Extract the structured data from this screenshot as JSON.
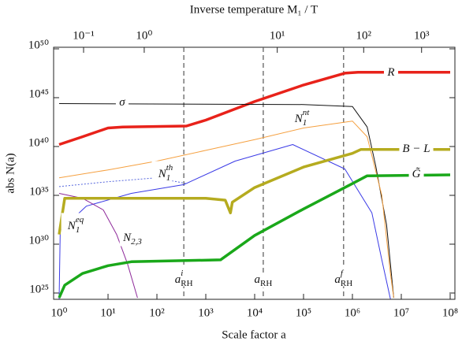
{
  "chart_data": {
    "type": "line",
    "xlabel": "Scale factor a",
    "ylabel": "abs N(a)",
    "x2label": "Inverse temperature M₁ / T",
    "xscale": "log",
    "yscale": "log",
    "xlim": [
      0.77,
      125000000.0
    ],
    "ylim": [
      2.26e+24,
      1.45e+50
    ],
    "xticks": [
      {
        "value": 1,
        "label": "10⁰"
      },
      {
        "value": 10,
        "label": "10¹"
      },
      {
        "value": 100,
        "label": "10²"
      },
      {
        "value": 1000,
        "label": "10³"
      },
      {
        "value": 10000,
        "label": "10⁴"
      },
      {
        "value": 100000,
        "label": "10⁵"
      },
      {
        "value": 1000000,
        "label": "10⁶"
      },
      {
        "value": 10000000,
        "label": "10⁷"
      },
      {
        "value": 100000000,
        "label": "10⁸"
      }
    ],
    "yticks": [
      {
        "value": 1e+25,
        "label": "10²⁵"
      },
      {
        "value": 1e+30,
        "label": "10³⁰"
      },
      {
        "value": 1e+35,
        "label": "10³⁵"
      },
      {
        "value": 1e+40,
        "label": "10⁴⁰"
      },
      {
        "value": 1e+45,
        "label": "10⁴⁵"
      },
      {
        "value": 1e+50,
        "label": "10⁵⁰"
      }
    ],
    "x2ticks": [
      {
        "value": 0.1,
        "label": "10⁻¹"
      },
      {
        "value": 1,
        "label": "10⁰"
      },
      {
        "value": 10,
        "label": "10¹"
      },
      {
        "value": 100,
        "label": "10²"
      },
      {
        "value": 1000,
        "label": "10³"
      }
    ],
    "x2_scale_factor": [
      3.16,
      55,
      29000,
      1700000,
      26000000
    ],
    "vlines": [
      {
        "x": 355,
        "label": "a",
        "sub": "RH",
        "sup": "i"
      },
      {
        "x": 15000,
        "label": "a",
        "sub": "RH"
      },
      {
        "x": 660000,
        "label": "a",
        "sub": "RH",
        "sup": "f"
      }
    ],
    "series": [
      {
        "name": "R",
        "color": "#e8221a",
        "width": 3.5,
        "x": [
          1,
          3,
          10,
          20,
          400,
          1000,
          10000,
          100000,
          700000,
          1300000,
          100000000
        ],
        "values": [
          1.6e+40,
          1e+41,
          7.9e+41,
          1e+42,
          1.26e+42,
          5e+42,
          4e+44,
          2e+46,
          3.2e+47,
          4e+47,
          4e+47
        ]
      },
      {
        "name": "σ",
        "color": "#111111",
        "width": 1,
        "x": [
          1,
          100000,
          1000000,
          2000000,
          3000000,
          5000000,
          7000000
        ],
        "values": [
          2.5e+44,
          2e+44,
          1.26e+44,
          1e+42,
          1e+38,
          1e+32,
          3.2e+24
        ]
      },
      {
        "name": "N",
        "name_sub": "1",
        "name_sup": "nt",
        "color": "#f5a040",
        "width": 1,
        "x": [
          1,
          10,
          100,
          1000,
          10000,
          100000,
          1000000,
          2000000,
          4000000,
          6000000,
          7000000
        ],
        "values": [
          6.3e+36,
          4e+37,
          3.2e+38,
          4e+39,
          5e+40,
          7.9e+41,
          4e+42,
          1e+41,
          1e+35,
          1e+27,
          3.2e+24
        ]
      },
      {
        "name": "N",
        "name_sub": "1",
        "name_sup": "th",
        "color": "#3a3ae6",
        "width": 1,
        "x": [
          1,
          1.05,
          3.6,
          30,
          355,
          4000,
          60000,
          700000,
          2500000,
          4000000,
          6000000
        ],
        "values": [
          2.5e+24,
          2.5e+31,
          7.9e+33,
          1.6e+35,
          1.26e+36,
          3.2e+38,
          1.6e+40,
          5e+37,
          1.6e+33,
          2.5e+28,
          2.5e+24
        ]
      },
      {
        "name": "N",
        "name_sub": "1",
        "name_sup": "eq",
        "color": "#5566dd",
        "width": 1,
        "dash": true,
        "x": [
          1,
          10,
          100,
          400
        ],
        "values": [
          7.9e+35,
          2.5e+36,
          6.3e+36,
          1.6e+36
        ]
      },
      {
        "name": "N",
        "name_sub": "2,3",
        "color": "#8e2a9a",
        "width": 1,
        "x": [
          1,
          3,
          8,
          15,
          25,
          40
        ],
        "values": [
          1.6e+35,
          5e+34,
          3.2e+33,
          1e+31,
          1e+28,
          3.2e+24
        ]
      },
      {
        "name": "B − L",
        "color": "#b5ab1f",
        "width": 3.5,
        "x": [
          1,
          1.3,
          1000,
          2500,
          3200,
          3500,
          10000,
          100000,
          1000000,
          1500000,
          100000000
        ],
        "values": [
          1e+31,
          5e+34,
          5e+34,
          3.2e+34,
          1.6e+33,
          2e+34,
          6.3e+35,
          7.9e+37,
          2e+39,
          5e+39,
          5e+39
        ]
      },
      {
        "name": "G̃",
        "color": "#1aa81a",
        "width": 3.5,
        "x": [
          1,
          1.3,
          3,
          10,
          30,
          2000,
          10000,
          100000,
          1000000,
          2000000,
          100000000
        ],
        "values": [
          3.2e+24,
          6.3e+25,
          1e+27,
          6.3e+27,
          1.6e+28,
          2.5e+28,
          7.9e+30,
          4e+33,
          1.6e+36,
          1e+37,
          1.26e+37
        ]
      }
    ]
  }
}
